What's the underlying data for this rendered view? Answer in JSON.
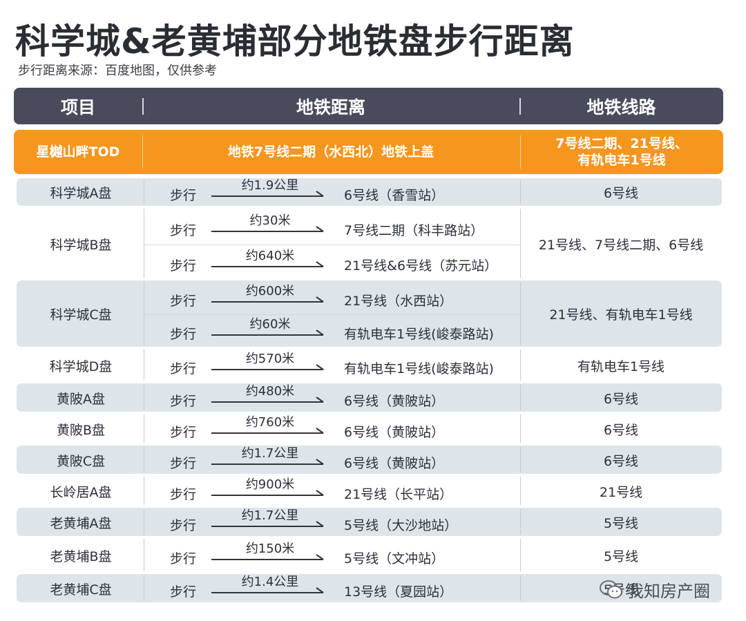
{
  "title": "科学城&老黄埔部分地铁盘步行距离",
  "subtitle": "步行距离来源：百度地图，仅供参考",
  "header": {
    "project": "项目",
    "distance": "地铁距离",
    "line": "地铁线路"
  },
  "highlight": {
    "project": "星樾山畔TOD",
    "distance": "地铁7号线二期（水西北）地铁上盖",
    "line_1": "7号线二期、21号线、",
    "line_2": "有轨电车1号线"
  },
  "walk_label": "步行",
  "rows": [
    {
      "project": "科学城A盘",
      "subs": [
        {
          "distance": "约1.9公里",
          "station": "6号线（香雪站）"
        }
      ],
      "line": "6号线"
    },
    {
      "project": "科学城B盘",
      "subs": [
        {
          "distance": "约30米",
          "station": "7号线二期（科丰路站）"
        },
        {
          "distance": "约640米",
          "station": "21号线&6号线（苏元站）"
        }
      ],
      "line": "21号线、7号线二期、6号线"
    },
    {
      "project": "科学城C盘",
      "subs": [
        {
          "distance": "约600米",
          "station": "21号线（水西站）"
        },
        {
          "distance": "约60米",
          "station": "有轨电车1号线(峻泰路站)"
        }
      ],
      "line": "21号线、有轨电车1号线"
    },
    {
      "project": "科学城D盘",
      "subs": [
        {
          "distance": "约570米",
          "station": "有轨电车1号线(峻泰路站)"
        }
      ],
      "line": "有轨电车1号线"
    },
    {
      "project": "黄陂A盘",
      "subs": [
        {
          "distance": "约480米",
          "station": "6号线（黄陂站）"
        }
      ],
      "line": "6号线"
    },
    {
      "project": "黄陂B盘",
      "subs": [
        {
          "distance": "约760米",
          "station": "6号线（黄陂站）"
        }
      ],
      "line": "6号线"
    },
    {
      "project": "黄陂C盘",
      "subs": [
        {
          "distance": "约1.7公里",
          "station": "6号线（黄陂站）"
        }
      ],
      "line": "6号线"
    },
    {
      "project": "长岭居A盘",
      "subs": [
        {
          "distance": "约900米",
          "station": "21号线（长平站）"
        }
      ],
      "line": "21号线"
    },
    {
      "project": "老黄埔A盘",
      "subs": [
        {
          "distance": "约1.7公里",
          "station": "5号线（大沙地站）"
        }
      ],
      "line": "5号线"
    },
    {
      "project": "老黄埔B盘",
      "subs": [
        {
          "distance": "约150米",
          "station": "5号线（文冲站）"
        }
      ],
      "line": "5号线"
    },
    {
      "project": "老黄埔C盘",
      "subs": [
        {
          "distance": "约1.4公里",
          "station": "13号线（夏园站）"
        }
      ],
      "line": "5号线"
    }
  ],
  "watermark": "我知房产圈",
  "icons": {
    "watermark": "wechat-icon",
    "arrow": "arrow-right-icon"
  },
  "colors": {
    "header_bg": "#474b5c",
    "highlight_bg": "#f5961f",
    "band_bg": "#dee5ea"
  }
}
